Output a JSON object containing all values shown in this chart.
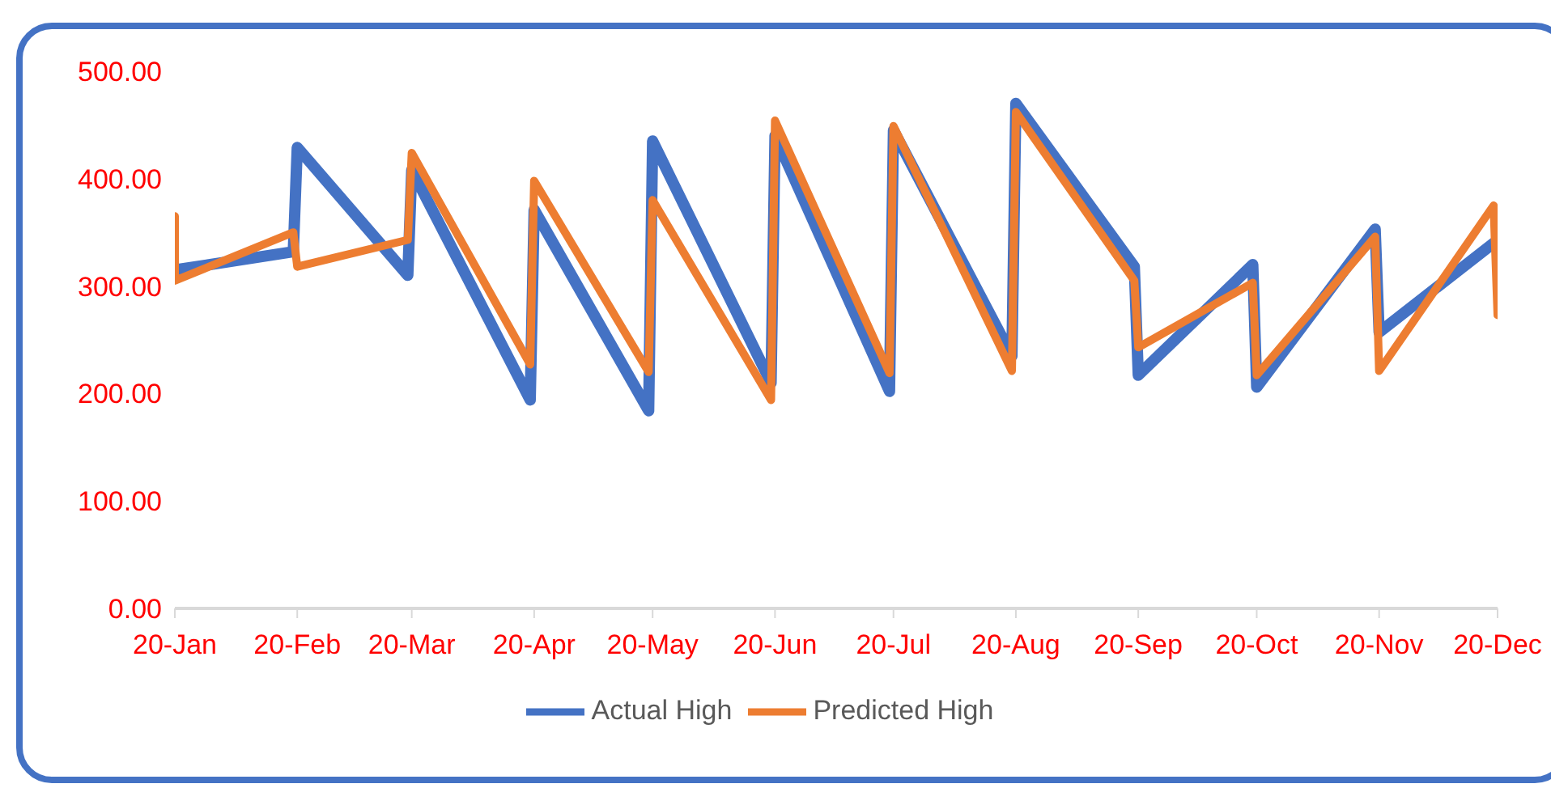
{
  "chart_data": {
    "type": "line",
    "xlim": [
      "2020-01-01",
      "2020-12-01"
    ],
    "xticks": [
      {
        "value": "2020-01-01",
        "label": "20-Jan"
      },
      {
        "value": "2020-02-01",
        "label": "20-Feb"
      },
      {
        "value": "2020-03-01",
        "label": "20-Mar"
      },
      {
        "value": "2020-04-01",
        "label": "20-Apr"
      },
      {
        "value": "2020-05-01",
        "label": "20-May"
      },
      {
        "value": "2020-06-01",
        "label": "20-Jun"
      },
      {
        "value": "2020-07-01",
        "label": "20-Jul"
      },
      {
        "value": "2020-08-01",
        "label": "20-Aug"
      },
      {
        "value": "2020-09-01",
        "label": "20-Sep"
      },
      {
        "value": "2020-10-01",
        "label": "20-Oct"
      },
      {
        "value": "2020-11-01",
        "label": "20-Nov"
      },
      {
        "value": "2020-12-01",
        "label": "20-Dec"
      }
    ],
    "ylim": [
      0,
      500
    ],
    "yticks": [
      {
        "value": 0,
        "label": "0.00"
      },
      {
        "value": 100,
        "label": "100.00"
      },
      {
        "value": 200,
        "label": "200.00"
      },
      {
        "value": 300,
        "label": "300.00"
      },
      {
        "value": 400,
        "label": "400.00"
      },
      {
        "value": 500,
        "label": "500.00"
      }
    ],
    "grid": false,
    "legend": "bottom",
    "marker": "none",
    "line_style": "solid",
    "series": [
      {
        "name": "Actual High",
        "color": "#4472c4",
        "x": [
          "2020-01-01",
          "2020-01-31",
          "2020-02-01",
          "2020-02-29",
          "2020-03-01",
          "2020-03-31",
          "2020-04-01",
          "2020-04-30",
          "2020-05-01",
          "2020-05-31",
          "2020-06-01",
          "2020-06-30",
          "2020-07-01",
          "2020-07-31",
          "2020-08-01",
          "2020-08-31",
          "2020-09-01",
          "2020-09-30",
          "2020-10-01",
          "2020-10-31",
          "2020-11-01",
          "2020-11-30"
        ],
        "values": [
          315,
          332,
          429,
          310,
          408,
          194,
          371,
          184,
          435,
          210,
          440,
          202,
          445,
          235,
          470,
          318,
          217,
          320,
          206,
          353,
          257,
          340
        ]
      },
      {
        "name": "Predicted High",
        "color": "#ed7d31",
        "x": [
          "2020-01-01",
          "2020-01-01",
          "2020-01-31",
          "2020-02-01",
          "2020-02-29",
          "2020-03-01",
          "2020-03-31",
          "2020-04-01",
          "2020-04-30",
          "2020-05-01",
          "2020-05-31",
          "2020-06-01",
          "2020-06-30",
          "2020-07-01",
          "2020-07-31",
          "2020-08-01",
          "2020-08-31",
          "2020-09-01",
          "2020-09-30",
          "2020-10-01",
          "2020-10-31",
          "2020-11-01",
          "2020-11-30",
          "2020-12-01"
        ],
        "values": [
          365,
          305,
          350,
          318,
          343,
          424,
          227,
          398,
          220,
          380,
          194,
          454,
          219,
          449,
          221,
          462,
          305,
          243,
          303,
          217,
          346,
          221,
          375,
          273
        ]
      }
    ]
  }
}
